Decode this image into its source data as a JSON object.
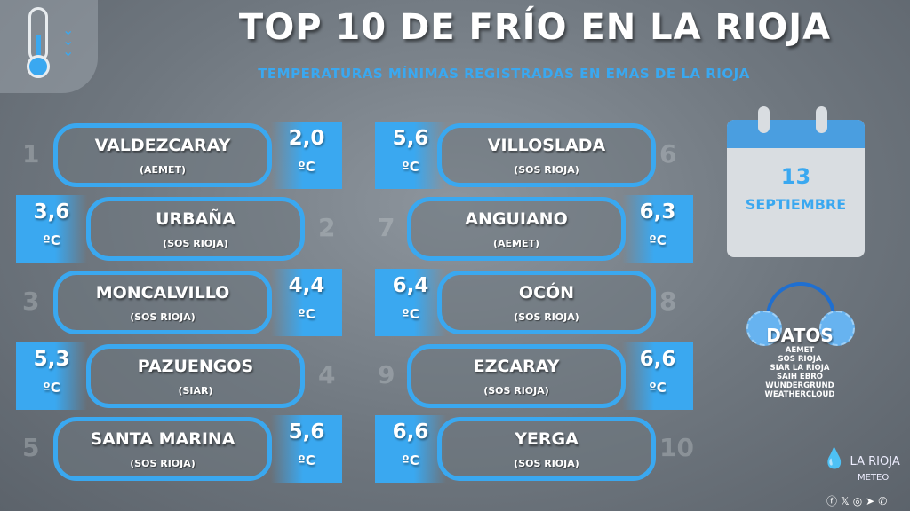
{
  "header": {
    "title": "TOP 10 DE FRÍO EN LA RIOJA",
    "subtitle": "TEMPERATURAS MÍNIMAS REGISTRADAS EN EMAS DE LA RIOJA"
  },
  "unit": "ºC",
  "ranking": [
    {
      "rank": "1",
      "name": "VALDEZCARAY",
      "source": "(AEMET)",
      "value": "2,0"
    },
    {
      "rank": "2",
      "name": "URBAÑA",
      "source": "(SOS RIOJA)",
      "value": "3,6"
    },
    {
      "rank": "3",
      "name": "MONCALVILLO",
      "source": "(SOS RIOJA)",
      "value": "4,4"
    },
    {
      "rank": "4",
      "name": "PAZUENGOS",
      "source": "(SIAR)",
      "value": "5,3"
    },
    {
      "rank": "5",
      "name": "SANTA MARINA",
      "source": "(SOS RIOJA)",
      "value": "5,6"
    },
    {
      "rank": "6",
      "name": "VILLOSLADA",
      "source": "(SOS RIOJA)",
      "value": "5,6"
    },
    {
      "rank": "7",
      "name": "ANGUIANO",
      "source": "(AEMET)",
      "value": "6,3"
    },
    {
      "rank": "8",
      "name": "OCÓN",
      "source": "(SOS RIOJA)",
      "value": "6,4"
    },
    {
      "rank": "9",
      "name": "EZCARAY",
      "source": "(SOS RIOJA)",
      "value": "6,6"
    },
    {
      "rank": "10",
      "name": "YERGA",
      "source": "(SOS RIOJA)",
      "value": "6,6"
    }
  ],
  "calendar": {
    "day": "13",
    "month": "SEPTIEMBRE"
  },
  "datos": {
    "title": "DATOS",
    "sources": [
      "AEMET",
      "SOS RIOJA",
      "SIAR LA RIOJA",
      "SAIH EBRO",
      "WUNDERGRUND",
      "WEATHERCLOUD"
    ]
  },
  "logo": {
    "line1": "LA RIOJA",
    "line2": "METEO"
  },
  "social": [
    "facebook-icon",
    "x-icon",
    "instagram-icon",
    "telegram-icon",
    "whatsapp-icon"
  ],
  "colors": {
    "accent": "#3aa8f0",
    "background": "#6f777f"
  }
}
